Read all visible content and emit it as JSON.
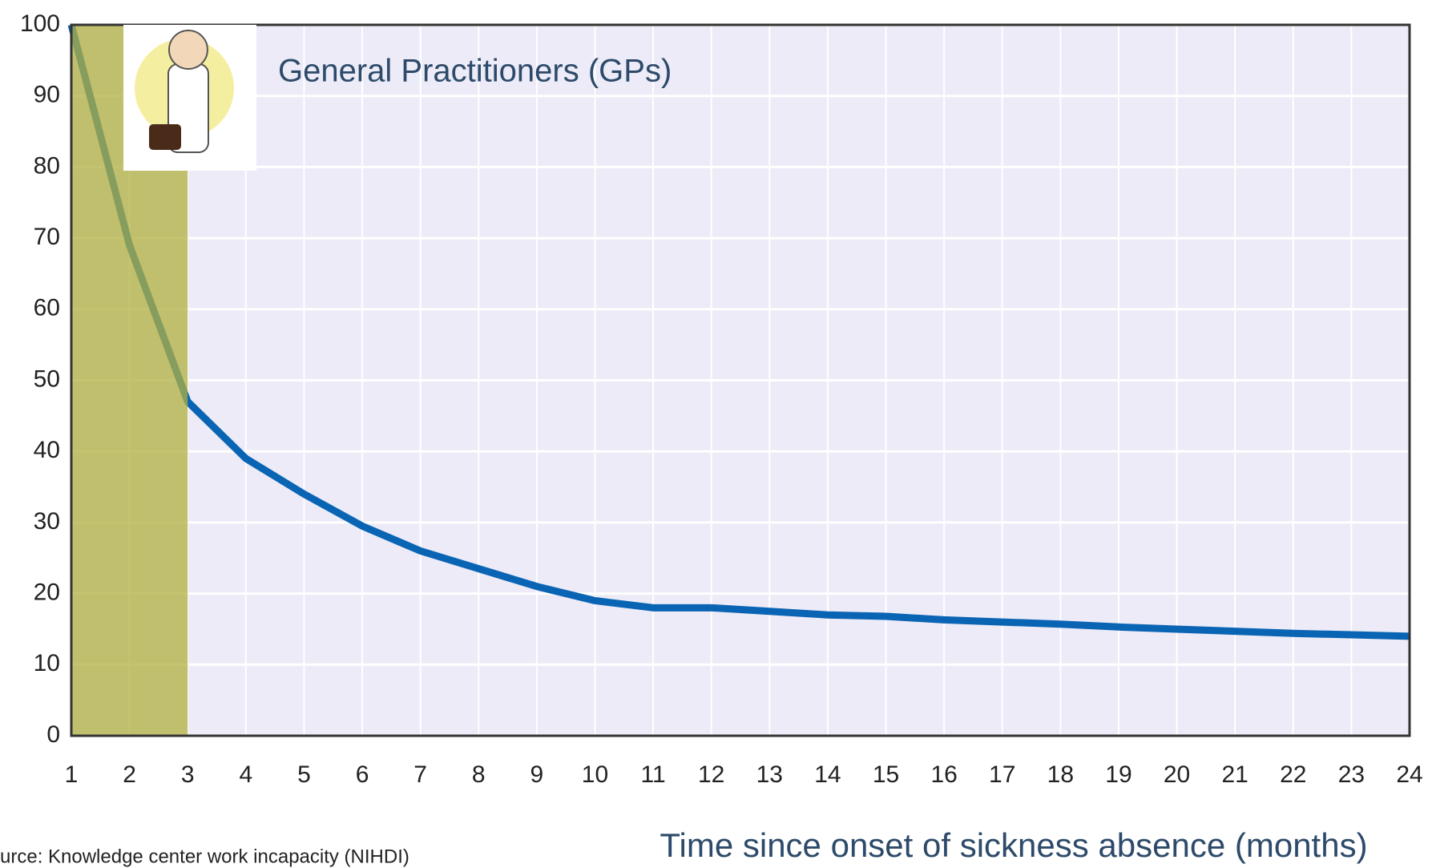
{
  "chart_data": {
    "type": "line",
    "annotation": "General Practitioners (GPs)",
    "x_label": "Time since onset of sickness absence (months)",
    "source": "urce: Knowledge center work incapacity (NIHDI)",
    "x": [
      1,
      2,
      3,
      4,
      5,
      6,
      7,
      8,
      9,
      10,
      11,
      12,
      13,
      14,
      15,
      16,
      17,
      18,
      19,
      20,
      21,
      22,
      23,
      24
    ],
    "series": [
      {
        "color": "#0a64b4",
        "values": [
          100,
          69,
          47,
          39,
          34,
          29.5,
          26,
          23.5,
          21,
          19,
          18,
          18,
          17.5,
          17,
          16.8,
          16.3,
          16,
          15.7,
          15.3,
          15,
          14.7,
          14.4,
          14.2,
          14
        ]
      }
    ],
    "xlim": [
      1,
      24
    ],
    "ylim": [
      0,
      100
    ],
    "xticks": [
      1,
      2,
      3,
      4,
      5,
      6,
      7,
      8,
      9,
      10,
      11,
      12,
      13,
      14,
      15,
      16,
      17,
      18,
      19,
      20,
      21,
      22,
      23,
      24
    ],
    "yticks": [
      0,
      10,
      20,
      30,
      40,
      50,
      60,
      70,
      80,
      90,
      100
    ],
    "highlight_x": [
      1,
      3
    ],
    "highlight_color": "#b0b040",
    "grid": true
  }
}
